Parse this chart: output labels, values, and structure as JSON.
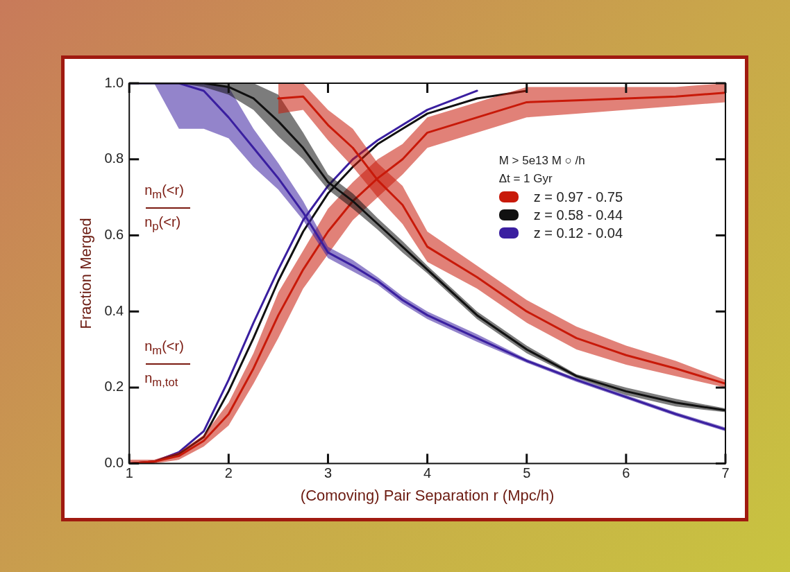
{
  "chart_data": {
    "type": "line",
    "xlabel": "(Comoving) Pair Separation r (Mpc/h)",
    "ylabel": "Fraction Merged",
    "legend_title": "M > 5e13 M ○ /h",
    "annotations": [
      "Δt = 1 Gyr",
      "n$_{m}$(<r)",
      "n$_{p}$(<r)",
      "n$_{m}$(<r)",
      "n$_{m,tot}$"
    ],
    "x": [
      1,
      1.25,
      1.5,
      1.75,
      2,
      2.25,
      2.5,
      2.75,
      3,
      3.25,
      3.5,
      3.75,
      4,
      4.5,
      5,
      5.5,
      6,
      6.5,
      7
    ],
    "xlim": [
      1,
      7
    ],
    "xticks": [
      1,
      2,
      3,
      4,
      5,
      6,
      7
    ],
    "ylim": [
      0,
      1
    ],
    "yticks": [
      {
        "value": 0,
        "label": "0.0"
      },
      {
        "value": 0.2,
        "label": "0.2"
      },
      {
        "value": 0.4,
        "label": "0.4"
      },
      {
        "value": 0.6,
        "label": "0.6"
      },
      {
        "value": 0.8,
        "label": "0.8"
      },
      {
        "value": 1,
        "label": "1.0"
      }
    ],
    "grid": false,
    "legend": "right",
    "marker": "none",
    "line_style": "solid",
    "series": [
      {
        "name": "z = 0.97 - 0.75",
        "color": "#c81a0a",
        "values": [
          null,
          null,
          null,
          null,
          null,
          null,
          0.96,
          0.965,
          0.89,
          0.83,
          0.745,
          0.68,
          0.57,
          0.49,
          0.4,
          0.33,
          0.285,
          0.25,
          0.21
        ],
        "lower": [
          null,
          null,
          null,
          null,
          null,
          null,
          0.92,
          0.93,
          0.85,
          0.78,
          0.7,
          0.63,
          0.53,
          0.46,
          0.37,
          0.3,
          0.26,
          0.23,
          0.2
        ],
        "upper": [
          null,
          null,
          null,
          null,
          null,
          null,
          1,
          1,
          0.93,
          0.88,
          0.79,
          0.73,
          0.61,
          0.52,
          0.43,
          0.36,
          0.31,
          0.27,
          0.22
        ]
      },
      {
        "name": "z = 0.58 - 0.44",
        "color": "#111111",
        "values": [
          1,
          1,
          1,
          1,
          0.99,
          0.96,
          0.9,
          0.83,
          0.74,
          0.69,
          0.63,
          0.57,
          0.51,
          0.39,
          0.3,
          0.23,
          0.19,
          0.16,
          0.14
        ],
        "lower": [
          1,
          1,
          1,
          0.99,
          0.97,
          0.93,
          0.86,
          0.8,
          0.72,
          0.67,
          0.615,
          0.555,
          0.5,
          0.38,
          0.29,
          0.225,
          0.18,
          0.15,
          0.135
        ],
        "upper": [
          1,
          1,
          1,
          1,
          1,
          1,
          0.97,
          0.87,
          0.76,
          0.71,
          0.645,
          0.585,
          0.52,
          0.4,
          0.31,
          0.235,
          0.2,
          0.17,
          0.145
        ]
      },
      {
        "name": "z = 0.12 - 0.04",
        "color": "#3a1fa0",
        "values": [
          1,
          1,
          1,
          0.98,
          0.91,
          0.83,
          0.75,
          0.66,
          0.555,
          0.52,
          0.48,
          0.43,
          0.39,
          0.33,
          0.27,
          0.22,
          0.175,
          0.13,
          0.09
        ],
        "lower": [
          1,
          1,
          0.88,
          0.88,
          0.855,
          0.78,
          0.72,
          0.64,
          0.54,
          0.505,
          0.47,
          0.42,
          0.38,
          0.32,
          0.265,
          0.215,
          0.17,
          0.125,
          0.085
        ],
        "upper": [
          1,
          1,
          1,
          1,
          0.99,
          0.88,
          0.79,
          0.69,
          0.57,
          0.535,
          0.49,
          0.44,
          0.4,
          0.34,
          0.275,
          0.225,
          0.18,
          0.135,
          0.095
        ]
      },
      {
        "color": "#c81a0a",
        "values": [
          0,
          0.005,
          0.02,
          0.06,
          0.13,
          0.25,
          0.39,
          0.51,
          0.61,
          0.69,
          0.75,
          0.8,
          0.87,
          0.91,
          0.95,
          0.955,
          0.96,
          0.965,
          0.975
        ],
        "lower": [
          0,
          0,
          0.01,
          0.045,
          0.1,
          0.21,
          0.33,
          0.46,
          0.55,
          0.64,
          0.7,
          0.76,
          0.83,
          0.87,
          0.91,
          0.92,
          0.93,
          0.94,
          0.95
        ],
        "upper": [
          0.01,
          0.01,
          0.03,
          0.075,
          0.16,
          0.29,
          0.45,
          0.56,
          0.67,
          0.74,
          0.8,
          0.84,
          0.91,
          0.95,
          0.99,
          0.99,
          0.99,
          0.99,
          1
        ]
      },
      {
        "color": "#111111",
        "values": [
          0,
          0.005,
          0.025,
          0.07,
          0.19,
          0.33,
          0.48,
          0.61,
          0.71,
          0.78,
          0.84,
          0.88,
          0.92,
          0.96,
          0.98,
          null,
          null,
          null,
          null
        ]
      },
      {
        "color": "#3a1fa0",
        "values": [
          0,
          0.005,
          0.03,
          0.085,
          0.22,
          0.37,
          0.51,
          0.64,
          0.73,
          0.8,
          0.85,
          0.89,
          0.93,
          0.98,
          null,
          null,
          null,
          null,
          null
        ]
      }
    ]
  }
}
